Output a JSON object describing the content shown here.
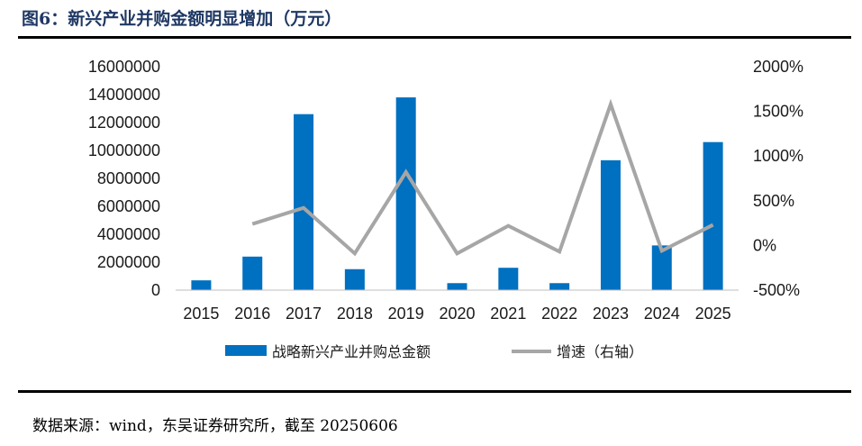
{
  "title": "图6：新兴产业并购金额明显增加（万元）",
  "source": "数据来源：wind，东吴证券研究所，截至 20250606",
  "colors": {
    "bar": "#0070c0",
    "line": "#a6a6a6",
    "title": "#1f3864"
  },
  "chart_data": {
    "type": "bar",
    "categories": [
      "2015",
      "2016",
      "2017",
      "2018",
      "2019",
      "2020",
      "2021",
      "2022",
      "2023",
      "2024",
      "2025"
    ],
    "series": [
      {
        "name": "战略新兴产业并购总金额",
        "type": "bar",
        "axis": "left",
        "values": [
          700000,
          2400000,
          12600000,
          1500000,
          13800000,
          500000,
          1600000,
          500000,
          9300000,
          3200000,
          10600000
        ]
      },
      {
        "name": "增速（右轴）",
        "type": "line",
        "axis": "right",
        "values": [
          null,
          240,
          420,
          -90,
          820,
          -90,
          220,
          -70,
          1580,
          -60,
          230
        ]
      }
    ],
    "ylim_left": [
      0,
      16000000
    ],
    "yticks_left": [
      "0",
      "2000000",
      "4000000",
      "6000000",
      "8000000",
      "10000000",
      "12000000",
      "14000000",
      "16000000"
    ],
    "ylim_right": [
      -500,
      2000
    ],
    "yticks_right": [
      "-500%",
      "0%",
      "500%",
      "1000%",
      "1500%",
      "2000%"
    ],
    "legend_position": "bottom",
    "grid": false
  }
}
